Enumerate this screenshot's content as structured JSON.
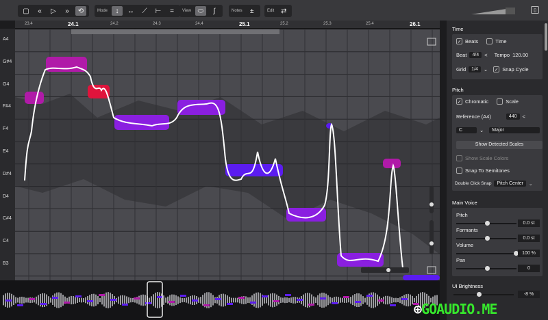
{
  "toolbar": {
    "transport": [
      "stop-icon",
      "rewind-icon",
      "play-icon",
      "fast-forward-icon",
      "loop-icon"
    ],
    "mode_label": "Mode",
    "view_label": "View",
    "notes_label": "Notes",
    "notes_icon": "±",
    "edit_label": "Edit"
  },
  "ruler": [
    {
      "label": "23.4",
      "major": false
    },
    {
      "label": "24.1",
      "major": true
    },
    {
      "label": "24.2",
      "major": false
    },
    {
      "label": "24.3",
      "major": false
    },
    {
      "label": "24.4",
      "major": false
    },
    {
      "label": "25.1",
      "major": true
    },
    {
      "label": "25.2",
      "major": false
    },
    {
      "label": "25.3",
      "major": false
    },
    {
      "label": "25.4",
      "major": false
    },
    {
      "label": "26.1",
      "major": true
    }
  ],
  "keys": [
    "A4",
    "G#4",
    "G4",
    "F#4",
    "F4",
    "E4",
    "D#4",
    "D4",
    "C#4",
    "C4",
    "B3"
  ],
  "colors": {
    "purple": "#8a1fe0",
    "blue": "#5b1cf0",
    "magenta": "#b01aa8",
    "red": "#e0143c",
    "accent": "#36e82c"
  },
  "panel": {
    "time": {
      "title": "Time",
      "beats": "Beats",
      "time": "Time",
      "beat_label": "Beat",
      "beat_value": "4/4",
      "tempo_label": "Tempo",
      "tempo_value": "120.00",
      "grid_label": "Grid",
      "grid_value": "1/4",
      "snap_cycle": "Snap Cycle"
    },
    "pitch": {
      "title": "Pitch",
      "chromatic": "Chromatic",
      "scale": "Scale",
      "reference_label": "Reference (A4)",
      "reference_value": "440",
      "key": "C",
      "mode": "Major",
      "show_detected": "Show Detected Scales",
      "show_scale_colors": "Show Scale Colors",
      "snap_semitones": "Snap To Semitones",
      "double_click_label": "Double Click Snap",
      "double_click_value": "Pitch Center"
    },
    "voice": {
      "title": "Main Voice",
      "pitch_label": "Pitch",
      "pitch_value": "0.0 st",
      "formants_label": "Formants",
      "formants_value": "0.0 st",
      "volume_label": "Volume",
      "volume_value": "100 %",
      "pan_label": "Pan",
      "pan_value": "0"
    },
    "ui": {
      "title": "UI Brightness",
      "value": "-8 %"
    }
  },
  "slider_levels": {
    "pitch": 0.5,
    "formants": 0.5,
    "volume": 1.0,
    "pan": 0.5,
    "brightness": 0.4
  },
  "watermark": {
    "text": "GOAUDIO.ME"
  }
}
